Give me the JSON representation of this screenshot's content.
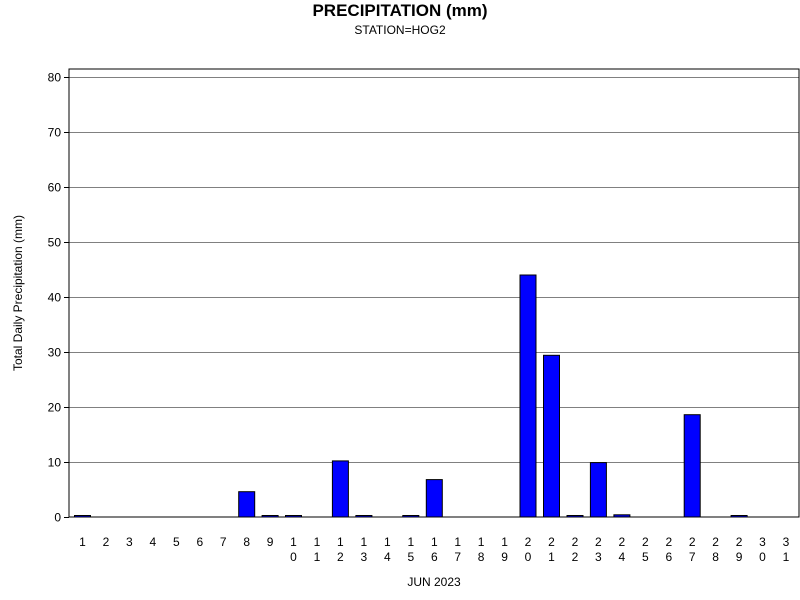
{
  "chart_data": {
    "type": "bar",
    "title": "PRECIPITATION (mm)",
    "subtitle": "STATION=HOG2",
    "xlabel": "JUN 2023",
    "ylabel": "Total Daily Precipitation (mm)",
    "ylim": [
      0,
      82
    ],
    "yticks": [
      0,
      10,
      20,
      30,
      40,
      50,
      60,
      70,
      80
    ],
    "grid": true,
    "bar_color": "#0000ff",
    "categories": [
      "1",
      "2",
      "3",
      "4",
      "5",
      "6",
      "7",
      "8",
      "9",
      "10",
      "11",
      "12",
      "13",
      "14",
      "15",
      "16",
      "17",
      "18",
      "19",
      "20",
      "21",
      "22",
      "23",
      "24",
      "25",
      "26",
      "27",
      "28",
      "29",
      "30",
      "31"
    ],
    "values": [
      0.2,
      null,
      null,
      null,
      null,
      null,
      null,
      4.6,
      0.2,
      0.2,
      null,
      10.2,
      0.2,
      null,
      0.2,
      6.8,
      null,
      null,
      null,
      44.0,
      29.4,
      0.2,
      9.9,
      0.4,
      null,
      null,
      18.6,
      null,
      0.2,
      null,
      null
    ]
  }
}
